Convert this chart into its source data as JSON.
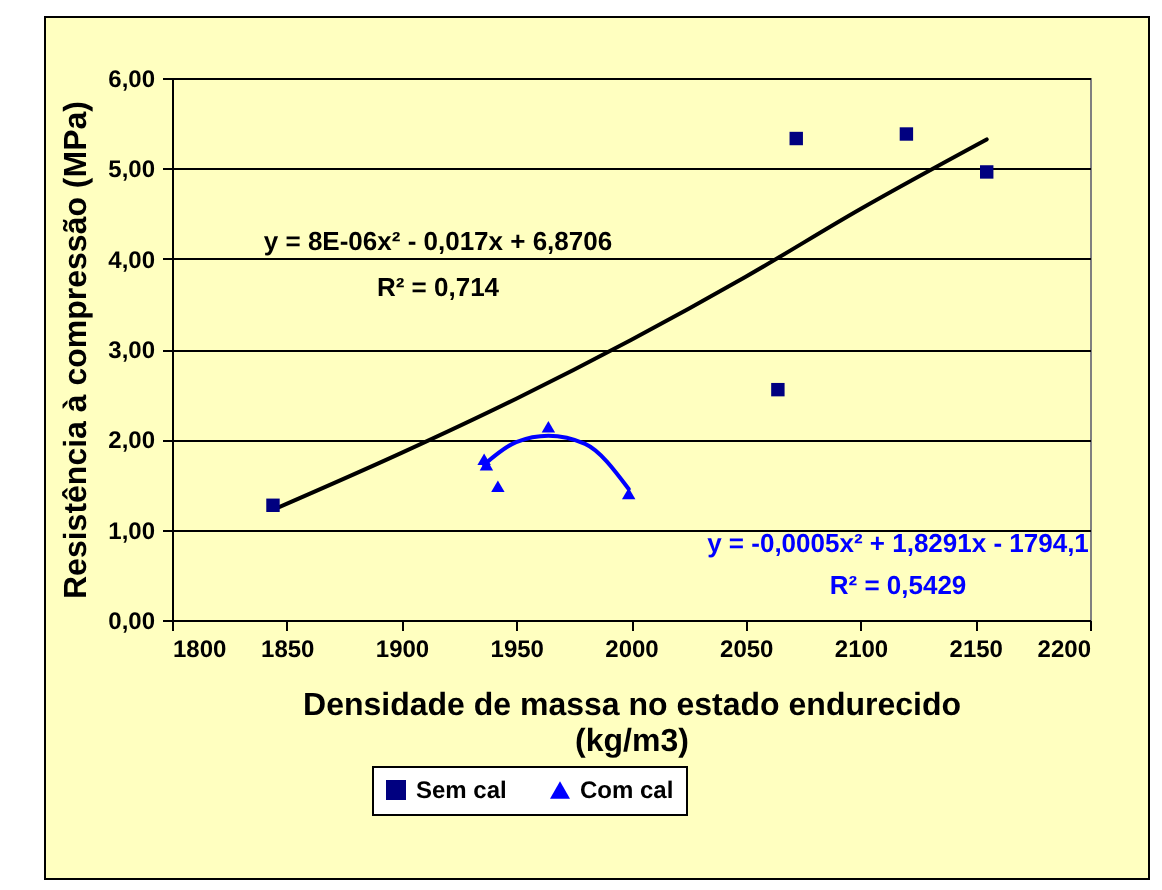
{
  "chart_data": {
    "type": "scatter",
    "xlabel": "Densidade de massa no estado endurecido\n(kg/m3)",
    "ylabel": "Resistência à compressão (MPa)",
    "series": [
      {
        "name": "Sem cal",
        "marker": "square",
        "color": "#000080",
        "x": [
          1844,
          2064,
          2072,
          2120,
          2155
        ],
        "values": [
          1.27,
          2.55,
          5.33,
          5.38,
          4.96
        ]
      },
      {
        "name": "Com cal",
        "marker": "triangle",
        "color": "#0000ff",
        "x": [
          1936,
          1937,
          1942,
          1964,
          1999
        ],
        "values": [
          1.78,
          1.72,
          1.48,
          2.14,
          1.4
        ]
      },
      {
        "type": "line",
        "color": "#000000",
        "x": [
          1844,
          1900,
          1950,
          2000,
          2050,
          2100,
          2155
        ],
        "values": [
          1.22,
          1.85,
          2.45,
          3.1,
          3.8,
          4.55,
          5.32
        ]
      },
      {
        "type": "line",
        "color": "#0000ff",
        "x": [
          1936,
          1950,
          1964,
          1980,
          1999
        ],
        "values": [
          1.72,
          1.97,
          2.04,
          1.95,
          1.45
        ]
      }
    ],
    "annotations": [
      "y = 8E-06x² - 0,017x + 6,8706",
      "R² = 0,714",
      "y = -0,0005x² + 1,8291x - 1794,1",
      "R² = 0,5429"
    ],
    "xlim": [
      1800,
      2200
    ],
    "xticks": [
      1800,
      1850,
      1900,
      1950,
      2000,
      2050,
      2100,
      2150,
      2200
    ],
    "ylim": [
      0,
      6
    ],
    "yticks": [
      {
        "value": 0,
        "label": "0,00"
      },
      {
        "value": 1,
        "label": "1,00"
      },
      {
        "value": 2,
        "label": "2,00"
      },
      {
        "value": 3,
        "label": "3,00"
      },
      {
        "value": 4,
        "label": "4,00"
      },
      {
        "value": 5,
        "label": "5,00"
      },
      {
        "value": 6,
        "label": "6,00"
      }
    ],
    "grid": "y",
    "legend": "bottom"
  }
}
